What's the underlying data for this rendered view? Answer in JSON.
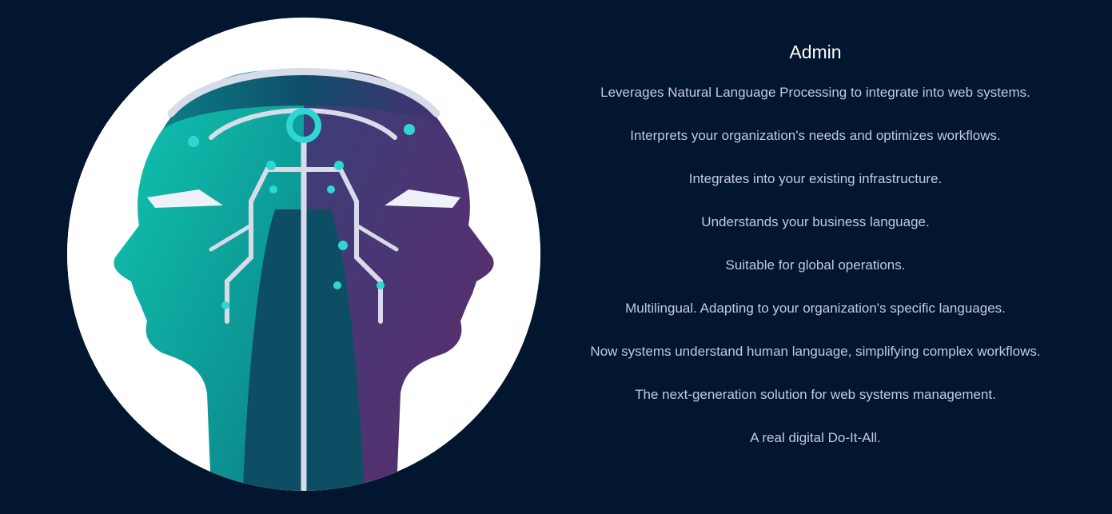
{
  "illustration": {
    "icon": "dual-ai-head-icon",
    "colors": {
      "teal": "#1ad1b8",
      "deep_teal": "#0d5f6e",
      "purple": "#5b2e6e",
      "circuit": "#d8dbe8",
      "node": "#2fd7d4"
    }
  },
  "content": {
    "title": "Admin",
    "features": [
      "Leverages Natural Language Processing to integrate into web systems.",
      "Interprets your organization's needs and optimizes workflows.",
      "Integrates into your existing infrastructure.",
      "Understands your business language.",
      "Suitable for global operations.",
      "Multilingual. Adapting to your organization's specific languages.",
      "Now systems understand human language, simplifying complex workflows.",
      "The next-generation solution for web systems management.",
      "A real digital Do-It-All."
    ]
  },
  "theme": {
    "background": "#02162f",
    "title_color": "#ffffff",
    "text_color": "#c2cade"
  }
}
